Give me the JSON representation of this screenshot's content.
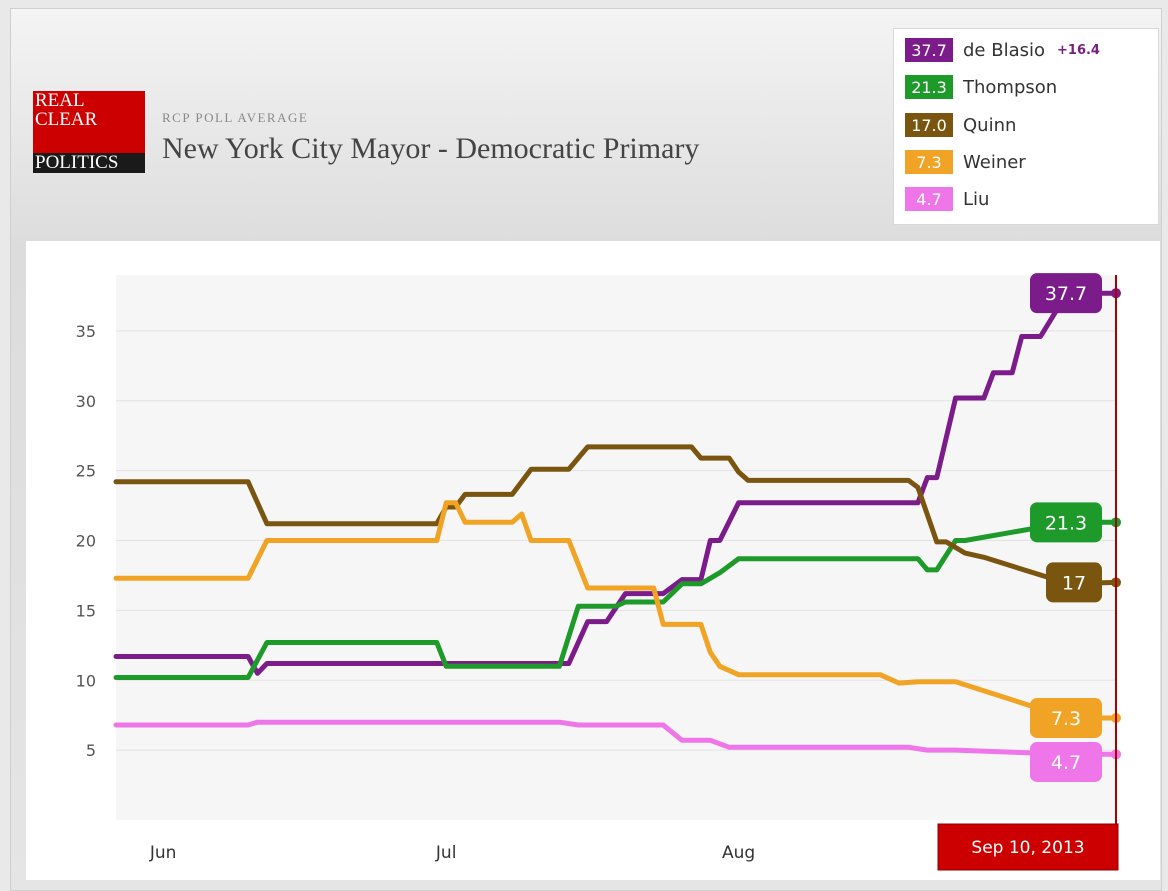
{
  "header": {
    "logo_lines": [
      "REAL",
      "CLEAR",
      "POLITICS"
    ],
    "subtitle": "RCP POLL AVERAGE",
    "title": "New York City Mayor - Democratic Primary"
  },
  "legend": {
    "leader_margin": "+16.4",
    "items": [
      {
        "name": "de Blasio",
        "value": "37.7",
        "color": "#7b1c8a"
      },
      {
        "name": "Thompson",
        "value": "21.3",
        "color": "#1e9a2a"
      },
      {
        "name": "Quinn",
        "value": "17.0",
        "color": "#7a5510"
      },
      {
        "name": "Weiner",
        "value": "7.3",
        "color": "#f0a324"
      },
      {
        "name": "Liu",
        "value": "4.7",
        "color": "#ee76e8"
      }
    ]
  },
  "date_marker": "Sep 10, 2013",
  "chart_data": {
    "type": "line",
    "title": "New York City Mayor - Democratic Primary",
    "subtitle": "RCP POLL AVERAGE",
    "xlabel": "",
    "ylabel": "",
    "x_range": [
      "2013-05-27",
      "2013-09-10"
    ],
    "x_ticks": [
      {
        "date": "2013-06-01",
        "label": "Jun"
      },
      {
        "date": "2013-07-01",
        "label": "Jul"
      },
      {
        "date": "2013-08-01",
        "label": "Aug"
      }
    ],
    "ylim": [
      0,
      39
    ],
    "y_ticks": [
      5,
      10,
      15,
      20,
      25,
      30,
      35
    ],
    "grid": true,
    "legend_position": "top-right",
    "series": [
      {
        "name": "de Blasio",
        "color": "#7b1c8a",
        "end_label": "37.7",
        "points": [
          [
            "2013-05-27",
            11.7
          ],
          [
            "2013-06-10",
            11.7
          ],
          [
            "2013-06-11",
            10.5
          ],
          [
            "2013-06-12",
            11.2
          ],
          [
            "2013-07-01",
            11.2
          ],
          [
            "2013-07-14",
            11.2
          ],
          [
            "2013-07-16",
            14.2
          ],
          [
            "2013-07-18",
            14.2
          ],
          [
            "2013-07-20",
            16.2
          ],
          [
            "2013-07-24",
            16.2
          ],
          [
            "2013-07-26",
            17.2
          ],
          [
            "2013-07-28",
            17.2
          ],
          [
            "2013-07-29",
            20.0
          ],
          [
            "2013-07-30",
            20.0
          ],
          [
            "2013-08-01",
            22.7
          ],
          [
            "2013-08-20",
            22.7
          ],
          [
            "2013-08-21",
            24.5
          ],
          [
            "2013-08-22",
            24.5
          ],
          [
            "2013-08-24",
            30.2
          ],
          [
            "2013-08-27",
            30.2
          ],
          [
            "2013-08-28",
            32.0
          ],
          [
            "2013-08-30",
            32.0
          ],
          [
            "2013-08-31",
            34.6
          ],
          [
            "2013-09-02",
            34.6
          ],
          [
            "2013-09-04",
            36.8
          ],
          [
            "2013-09-05",
            37.7
          ],
          [
            "2013-09-10",
            37.7
          ]
        ]
      },
      {
        "name": "Thompson",
        "color": "#1e9a2a",
        "end_label": "21.3",
        "points": [
          [
            "2013-05-27",
            10.2
          ],
          [
            "2013-06-10",
            10.2
          ],
          [
            "2013-06-12",
            12.7
          ],
          [
            "2013-06-30",
            12.7
          ],
          [
            "2013-07-01",
            11.0
          ],
          [
            "2013-07-13",
            11.0
          ],
          [
            "2013-07-15",
            15.3
          ],
          [
            "2013-07-19",
            15.3
          ],
          [
            "2013-07-20",
            15.6
          ],
          [
            "2013-07-24",
            15.6
          ],
          [
            "2013-07-26",
            16.9
          ],
          [
            "2013-07-28",
            16.9
          ],
          [
            "2013-07-30",
            17.7
          ],
          [
            "2013-08-01",
            18.7
          ],
          [
            "2013-08-20",
            18.7
          ],
          [
            "2013-08-21",
            17.9
          ],
          [
            "2013-08-22",
            17.9
          ],
          [
            "2013-08-24",
            20.0
          ],
          [
            "2013-08-25",
            20.0
          ],
          [
            "2013-09-05",
            21.3
          ],
          [
            "2013-09-10",
            21.3
          ]
        ]
      },
      {
        "name": "Quinn",
        "color": "#7a5510",
        "end_label": "17",
        "points": [
          [
            "2013-05-27",
            24.2
          ],
          [
            "2013-06-10",
            24.2
          ],
          [
            "2013-06-12",
            21.2
          ],
          [
            "2013-06-30",
            21.2
          ],
          [
            "2013-07-01",
            22.4
          ],
          [
            "2013-07-02",
            22.4
          ],
          [
            "2013-07-03",
            23.3
          ],
          [
            "2013-07-08",
            23.3
          ],
          [
            "2013-07-10",
            25.1
          ],
          [
            "2013-07-14",
            25.1
          ],
          [
            "2013-07-16",
            26.7
          ],
          [
            "2013-07-27",
            26.7
          ],
          [
            "2013-07-28",
            25.9
          ],
          [
            "2013-07-31",
            25.9
          ],
          [
            "2013-08-01",
            24.9
          ],
          [
            "2013-08-02",
            24.3
          ],
          [
            "2013-08-19",
            24.3
          ],
          [
            "2013-08-20",
            23.8
          ],
          [
            "2013-08-22",
            19.9
          ],
          [
            "2013-08-23",
            19.9
          ],
          [
            "2013-08-25",
            19.1
          ],
          [
            "2013-08-27",
            18.8
          ],
          [
            "2013-09-05",
            16.9
          ],
          [
            "2013-09-10",
            17.0
          ]
        ]
      },
      {
        "name": "Weiner",
        "color": "#f0a324",
        "end_label": "7.3",
        "points": [
          [
            "2013-05-27",
            17.3
          ],
          [
            "2013-06-10",
            17.3
          ],
          [
            "2013-06-12",
            20.0
          ],
          [
            "2013-06-30",
            20.0
          ],
          [
            "2013-07-01",
            22.7
          ],
          [
            "2013-07-02",
            22.7
          ],
          [
            "2013-07-03",
            21.3
          ],
          [
            "2013-07-08",
            21.3
          ],
          [
            "2013-07-09",
            21.9
          ],
          [
            "2013-07-10",
            20.0
          ],
          [
            "2013-07-14",
            20.0
          ],
          [
            "2013-07-16",
            16.6
          ],
          [
            "2013-07-23",
            16.6
          ],
          [
            "2013-07-24",
            14.0
          ],
          [
            "2013-07-28",
            14.0
          ],
          [
            "2013-07-29",
            12.0
          ],
          [
            "2013-07-30",
            11.0
          ],
          [
            "2013-08-01",
            10.4
          ],
          [
            "2013-08-16",
            10.4
          ],
          [
            "2013-08-18",
            9.8
          ],
          [
            "2013-08-20",
            9.9
          ],
          [
            "2013-08-24",
            9.9
          ],
          [
            "2013-09-05",
            7.3
          ],
          [
            "2013-09-10",
            7.3
          ]
        ]
      },
      {
        "name": "Liu",
        "color": "#ee76e8",
        "end_label": "4.7",
        "points": [
          [
            "2013-05-27",
            6.8
          ],
          [
            "2013-06-10",
            6.8
          ],
          [
            "2013-06-11",
            7.0
          ],
          [
            "2013-07-13",
            7.0
          ],
          [
            "2013-07-15",
            6.8
          ],
          [
            "2013-07-24",
            6.8
          ],
          [
            "2013-07-26",
            5.7
          ],
          [
            "2013-07-29",
            5.7
          ],
          [
            "2013-07-31",
            5.2
          ],
          [
            "2013-08-19",
            5.2
          ],
          [
            "2013-08-21",
            5.0
          ],
          [
            "2013-08-24",
            5.0
          ],
          [
            "2013-09-05",
            4.7
          ],
          [
            "2013-09-10",
            4.7
          ]
        ]
      }
    ]
  }
}
